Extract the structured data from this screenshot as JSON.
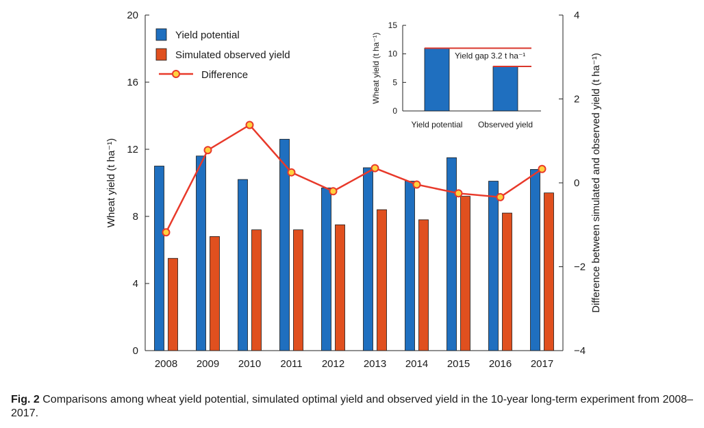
{
  "chart_data": {
    "type": "bar",
    "categories": [
      "2008",
      "2009",
      "2010",
      "2011",
      "2012",
      "2013",
      "2014",
      "2015",
      "2016",
      "2017"
    ],
    "series": [
      {
        "name": "Yield potential",
        "axis": "left",
        "kind": "bar",
        "color": "#1f6fbf",
        "values": [
          11.0,
          11.6,
          10.2,
          12.6,
          9.7,
          10.9,
          10.1,
          11.5,
          10.1,
          10.8
        ]
      },
      {
        "name": "Simulated observed yield",
        "axis": "left",
        "kind": "bar",
        "color": "#e0501f",
        "values": [
          5.5,
          6.8,
          7.2,
          7.2,
          7.5,
          8.4,
          7.8,
          9.2,
          8.2,
          9.4
        ]
      },
      {
        "name": "Difference",
        "axis": "right",
        "kind": "line",
        "color": "#e8392a",
        "marker_fill": "#ffd23f",
        "values": [
          -1.18,
          0.78,
          1.38,
          0.25,
          -0.2,
          0.35,
          -0.04,
          -0.25,
          -0.34,
          0.33
        ]
      }
    ],
    "ylabel": "Wheat yield (t ha⁻¹)",
    "ylabel_right": "Difference between simulated and observed yield (t ha⁻¹)",
    "ylim": [
      0,
      20
    ],
    "yticks": [
      "0",
      "4",
      "8",
      "12",
      "16",
      "20"
    ],
    "ylim_right": [
      -4,
      4
    ],
    "yticks_right": [
      "−4",
      "−2",
      "0",
      "2",
      "4"
    ],
    "legend": [
      "Yield potential",
      "Simulated observed yield",
      "Difference"
    ],
    "legend_position": "top-left",
    "inset": {
      "type": "bar",
      "categories": [
        "Yield potential",
        "Observed yield"
      ],
      "values": [
        11.0,
        7.8
      ],
      "ylabel": "Wheat yield (t ha⁻¹)",
      "ylim": [
        0,
        15
      ],
      "yticks": [
        "0",
        "5",
        "10",
        "15"
      ],
      "annotation": "Yield gap 3.2 t ha⁻¹"
    }
  },
  "caption": {
    "label": "Fig. 2",
    "text": "Comparisons among wheat yield potential, simulated optimal yield and observed yield in the 10-year long-term experiment from 2008–2017."
  }
}
